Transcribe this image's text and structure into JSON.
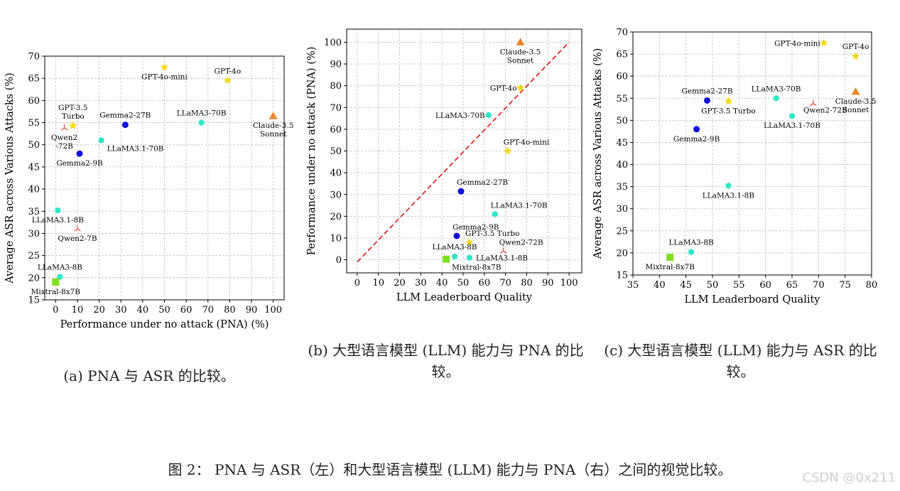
{
  "captions": {
    "a": "(a)  PNA 与 ASR 的比较。",
    "b": "(b) 大型语言模型 (LLM) 能力与 PNA 的比较。",
    "c": "(c) 大型语言模型 (LLM) 能力与 ASR 的比较。"
  },
  "figure_caption": "图 2：  PNA 与 ASR（左）和大型语言模型 (LLM) 能力与 PNA（右）之间的视觉比较。",
  "watermark": "CSDN @0x211",
  "chart_data": [
    {
      "type": "scatter",
      "id": "a",
      "xlabel": "Performance under no attack (PNA) (%)",
      "ylabel": "Average ASR across Various Attacks (%)",
      "xlim": [
        -5,
        105
      ],
      "ylim": [
        15,
        70
      ],
      "xticks": [
        0,
        10,
        20,
        30,
        40,
        50,
        60,
        70,
        80,
        90,
        100
      ],
      "yticks": [
        15,
        20,
        25,
        30,
        35,
        40,
        45,
        50,
        55,
        60,
        65,
        70
      ],
      "grid": true,
      "points": [
        {
          "name": "GPT-4o-mini",
          "x": 50,
          "y": 67.5,
          "marker": "star",
          "color": "#f5d800",
          "label": "GPT-4o-mini",
          "lpos": "below"
        },
        {
          "name": "GPT-4o",
          "x": 79,
          "y": 64.5,
          "marker": "star",
          "color": "#f5d800",
          "label": "GPT-4o",
          "lpos": "above"
        },
        {
          "name": "Claude-3.5 Sonnet",
          "x": 100,
          "y": 56.5,
          "marker": "triangle",
          "color": "#e8872a",
          "label": [
            "Claude-3.5",
            "Sonnet"
          ],
          "lpos": "below"
        },
        {
          "name": "LLaMA3-70B",
          "x": 67,
          "y": 55,
          "marker": "hex",
          "color": "#2ee8c8",
          "label": "LLaMA3-70B",
          "lpos": "above"
        },
        {
          "name": "Gemma2-27B",
          "x": 32,
          "y": 54.5,
          "marker": "circle",
          "color": "#1010d8",
          "label": "Gemma2-27B",
          "lpos": "above"
        },
        {
          "name": "GPT-3.5 Turbo",
          "x": 8,
          "y": 54.3,
          "marker": "star",
          "color": "#f5d800",
          "label": [
            "GPT-3.5",
            "Turbo"
          ],
          "lpos": "above"
        },
        {
          "name": "Qwen2-72B",
          "x": 4,
          "y": 53.8,
          "marker": "tri",
          "color": "#e85a50",
          "label": [
            "Qwen2",
            "-72B"
          ],
          "lpos": "below"
        },
        {
          "name": "LLaMA3.1-70B",
          "x": 21,
          "y": 51,
          "marker": "hex",
          "color": "#2ee8c8",
          "label": "LLaMA3.1-70B",
          "lpos": "belowright"
        },
        {
          "name": "Gemma2-9B",
          "x": 11,
          "y": 48,
          "marker": "circle",
          "color": "#1010d8",
          "label": "Gemma2-9B",
          "lpos": "below"
        },
        {
          "name": "LLaMA3.1-8B",
          "x": 1,
          "y": 35.2,
          "marker": "hex",
          "color": "#2ee8c8",
          "label": "LLaMA3.1-8B",
          "lpos": "below"
        },
        {
          "name": "Qwen2-7B",
          "x": 10,
          "y": 31,
          "marker": "tri",
          "color": "#e85a50",
          "label": "Qwen2-7B",
          "lpos": "below"
        },
        {
          "name": "LLaMA3-8B",
          "x": 2,
          "y": 20.2,
          "marker": "hex",
          "color": "#2ee8c8",
          "label": "LLaMA3-8B",
          "lpos": "above"
        },
        {
          "name": "Mixtral-8x7B",
          "x": 0,
          "y": 19,
          "marker": "square",
          "color": "#7ee020",
          "label": "Mixtral-8x7B",
          "lpos": "below"
        }
      ]
    },
    {
      "type": "scatter",
      "id": "b",
      "xlabel": "LLM Leaderboard Quality",
      "ylabel": "Performance under no attack (PNA) (%)",
      "xlim": [
        -5,
        106
      ],
      "ylim": [
        -6,
        106
      ],
      "xticks": [
        0,
        10,
        20,
        30,
        40,
        50,
        60,
        70,
        80,
        90,
        100
      ],
      "yticks": [
        0,
        10,
        20,
        30,
        40,
        50,
        60,
        70,
        80,
        90,
        100
      ],
      "grid": true,
      "reference_line": {
        "from": [
          0,
          -1
        ],
        "to": [
          100,
          100
        ],
        "color": "#e01010",
        "style": "dashed"
      },
      "points": [
        {
          "name": "Claude-3.5 Sonnet",
          "x": 77,
          "y": 100,
          "marker": "triangle",
          "color": "#e8872a",
          "label": [
            "Claude-3.5",
            "Sonnet"
          ],
          "lpos": "below"
        },
        {
          "name": "GPT-4o",
          "x": 77,
          "y": 79,
          "marker": "star",
          "color": "#f5d800",
          "label": "GPT-4o",
          "lpos": "left"
        },
        {
          "name": "LLaMA3-70B",
          "x": 62,
          "y": 66.5,
          "marker": "hex",
          "color": "#2ee8c8",
          "label": "LLaMA3-70B",
          "lpos": "left"
        },
        {
          "name": "GPT-4o-mini",
          "x": 71,
          "y": 50,
          "marker": "star",
          "color": "#f5d800",
          "label": "GPT-4o-mini",
          "lpos": "aboveright"
        },
        {
          "name": "Gemma2-27B",
          "x": 49,
          "y": 31.5,
          "marker": "circle",
          "color": "#1010d8",
          "label": "Gemma2-27B",
          "lpos": "aboveright"
        },
        {
          "name": "LLaMA3.1-70B",
          "x": 65,
          "y": 21,
          "marker": "hex",
          "color": "#2ee8c8",
          "label": "LLaMA3.1-70B",
          "lpos": "aboveright"
        },
        {
          "name": "Gemma2-9B",
          "x": 47,
          "y": 11,
          "marker": "circle",
          "color": "#1010d8",
          "label": "Gemma2-9B",
          "lpos": "aboveright"
        },
        {
          "name": "GPT-3.5 Turbo",
          "x": 53,
          "y": 8,
          "marker": "star",
          "color": "#f5d800",
          "label": "GPT-3.5 Turbo",
          "lpos": "aboveright"
        },
        {
          "name": "Qwen2-72B",
          "x": 69,
          "y": 4,
          "marker": "tri",
          "color": "#e85a50",
          "label": "Qwen2-72B",
          "lpos": "aboveright"
        },
        {
          "name": "LLaMA3-8B",
          "x": 46,
          "y": 1.5,
          "marker": "hex",
          "color": "#2ee8c8",
          "label": "LLaMA3-8B",
          "lpos": "above"
        },
        {
          "name": "LLaMA3.1-8B",
          "x": 53,
          "y": 1,
          "marker": "hex",
          "color": "#2ee8c8",
          "label": "LLaMA3.1-8B",
          "lpos": "right"
        },
        {
          "name": "Mixtral-8x7B",
          "x": 42,
          "y": 0.3,
          "marker": "square",
          "color": "#7ee020",
          "label": "Mixtral-8x7B",
          "lpos": "belowright"
        }
      ]
    },
    {
      "type": "scatter",
      "id": "c",
      "xlabel": "LLM Leaderboard Quality",
      "ylabel": "Average ASR across Various Attacks (%)",
      "xlim": [
        35,
        80
      ],
      "ylim": [
        15,
        70
      ],
      "xticks": [
        35,
        40,
        45,
        50,
        55,
        60,
        65,
        70,
        75,
        80
      ],
      "yticks": [
        15,
        20,
        25,
        30,
        35,
        40,
        45,
        50,
        55,
        60,
        65,
        70
      ],
      "grid": true,
      "points": [
        {
          "name": "GPT-4o-mini",
          "x": 71,
          "y": 67.5,
          "marker": "star",
          "color": "#f5d800",
          "label": "GPT-4o-mini",
          "lpos": "left"
        },
        {
          "name": "GPT-4o",
          "x": 77,
          "y": 64.5,
          "marker": "star",
          "color": "#f5d800",
          "label": "GPT-4o",
          "lpos": "above"
        },
        {
          "name": "Claude-3.5 Sonnet",
          "x": 77,
          "y": 56.5,
          "marker": "triangle",
          "color": "#e8872a",
          "label": [
            "Claude-3.5",
            "Sonnet"
          ],
          "lpos": "below"
        },
        {
          "name": "LLaMA3-70B",
          "x": 62,
          "y": 55,
          "marker": "hex",
          "color": "#2ee8c8",
          "label": "LLaMA3-70B",
          "lpos": "above"
        },
        {
          "name": "Gemma2-27B",
          "x": 49,
          "y": 54.5,
          "marker": "circle",
          "color": "#1010d8",
          "label": "Gemma2-27B",
          "lpos": "above"
        },
        {
          "name": "GPT-3.5 Turbo",
          "x": 53,
          "y": 54.3,
          "marker": "star",
          "color": "#f5d800",
          "label": "GPT-3.5 Turbo",
          "lpos": "below"
        },
        {
          "name": "Qwen2-72B",
          "x": 69,
          "y": 53.8,
          "marker": "tri",
          "color": "#e85a50",
          "label": "Qwen2-72B",
          "lpos": "belowleft"
        },
        {
          "name": "LLaMA3.1-70B",
          "x": 65,
          "y": 51,
          "marker": "hex",
          "color": "#2ee8c8",
          "label": "LLaMA3.1-70B",
          "lpos": "below"
        },
        {
          "name": "Gemma2-9B",
          "x": 47,
          "y": 48,
          "marker": "circle",
          "color": "#1010d8",
          "label": "Gemma2-9B",
          "lpos": "below"
        },
        {
          "name": "LLaMA3.1-8B",
          "x": 53,
          "y": 35.2,
          "marker": "hex",
          "color": "#2ee8c8",
          "label": "LLaMA3.1-8B",
          "lpos": "below"
        },
        {
          "name": "LLaMA3-8B",
          "x": 46,
          "y": 20.2,
          "marker": "hex",
          "color": "#2ee8c8",
          "label": "LLaMA3-8B",
          "lpos": "above"
        },
        {
          "name": "Mixtral-8x7B",
          "x": 42,
          "y": 19,
          "marker": "square",
          "color": "#7ee020",
          "label": "Mixtral-8x7B",
          "lpos": "below"
        }
      ]
    }
  ]
}
